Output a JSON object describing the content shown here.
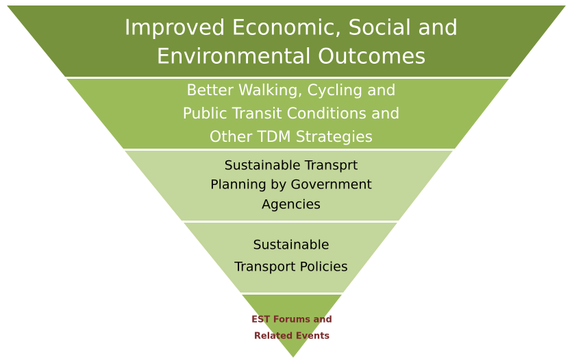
{
  "levels": [
    {
      "lines": [
        "Improved Economic, Social and",
        "Environmental Outcomes"
      ]
    },
    {
      "lines": [
        "Better Walking, Cycling and",
        "Public Transit Conditions and",
        "Other TDM Strategies"
      ]
    },
    {
      "lines": [
        "Sustainable Transprt",
        "Planning by Government",
        "Agencies"
      ]
    },
    {
      "lines": [
        "Sustainable",
        "Transport Policies"
      ]
    },
    {
      "lines": [
        "EST Forums and",
        "Related Events"
      ]
    }
  ]
}
